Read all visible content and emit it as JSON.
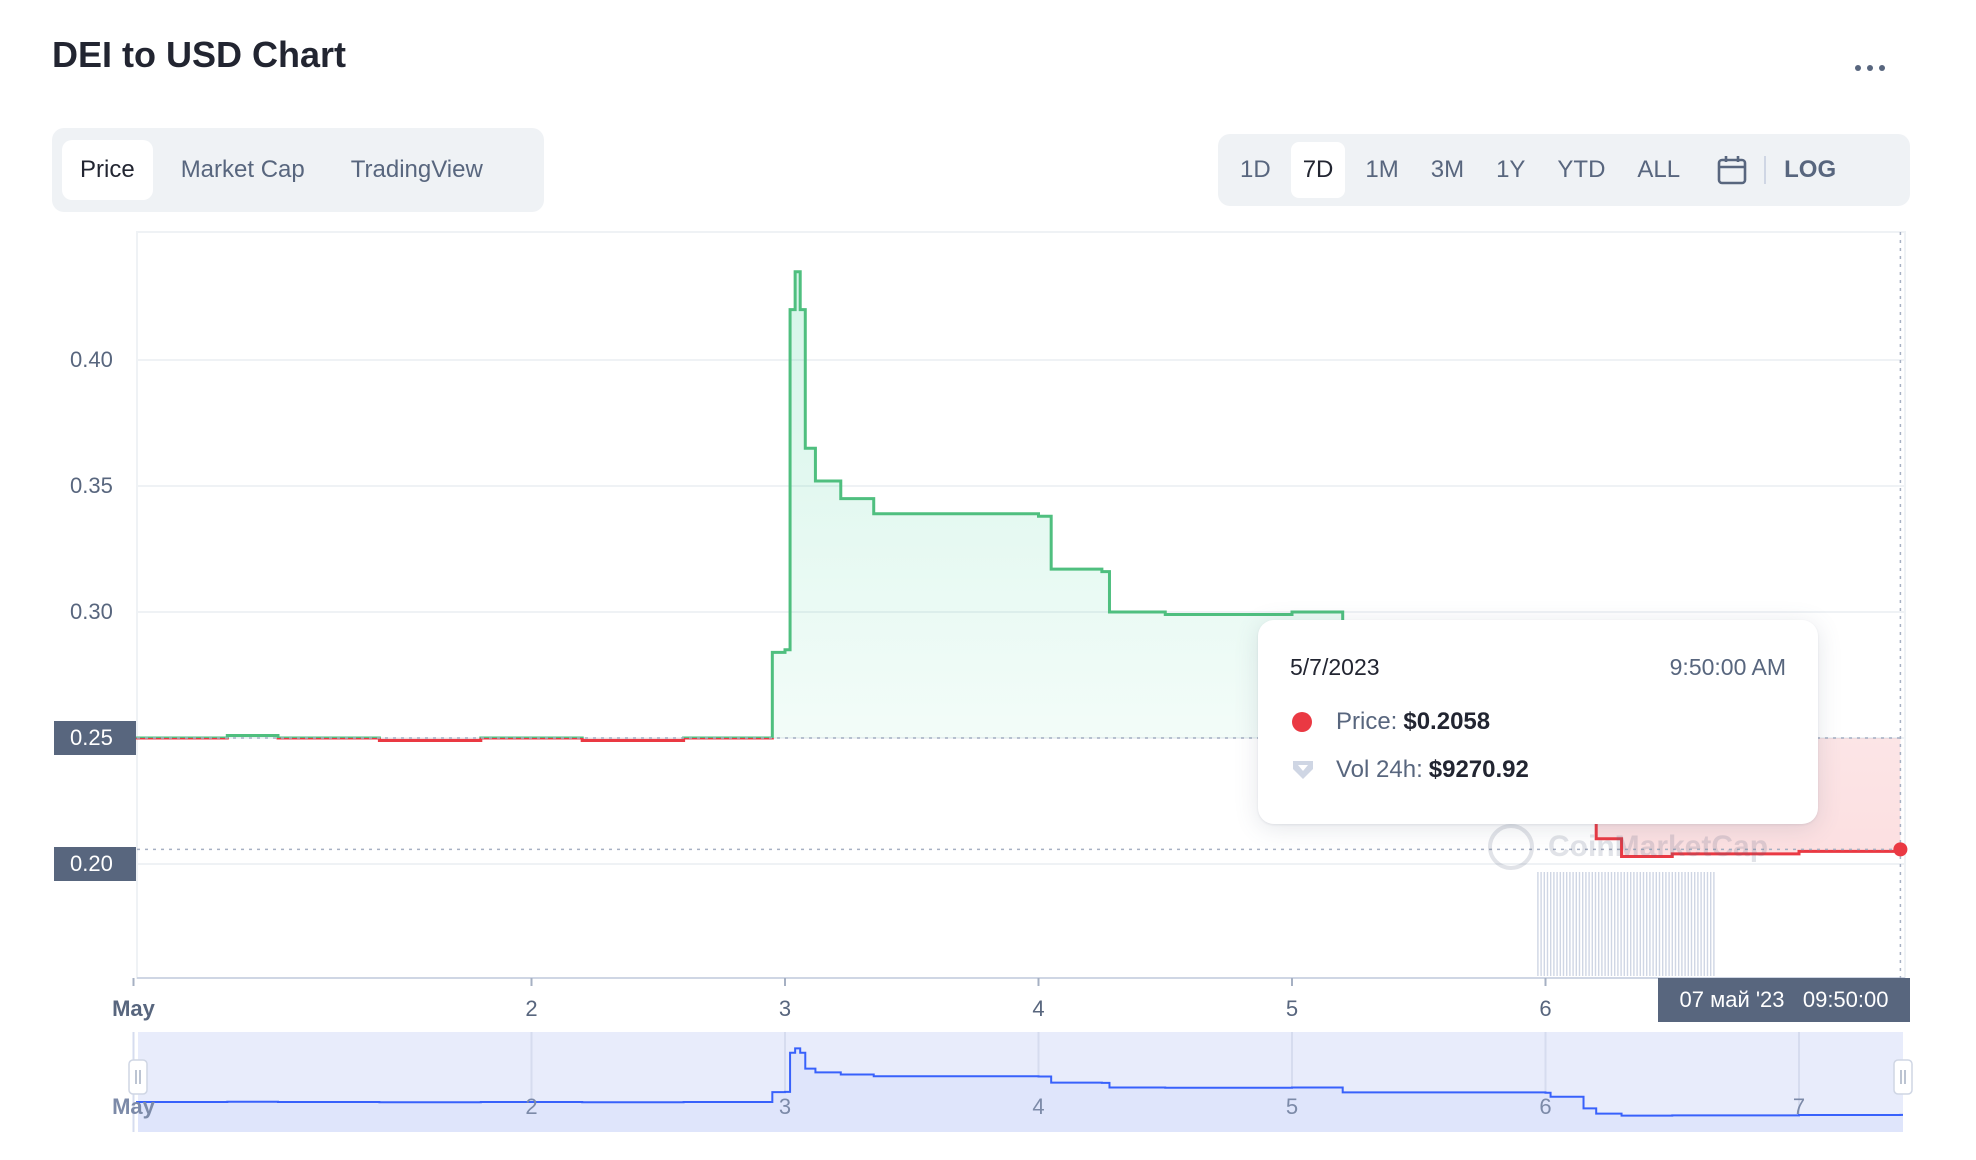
{
  "header": {
    "title": "DEI to USD Chart",
    "more_icon": "more-horizontal-icon"
  },
  "tabs": [
    {
      "label": "Price",
      "active": true
    },
    {
      "label": "Market Cap",
      "active": false
    },
    {
      "label": "TradingView",
      "active": false
    }
  ],
  "ranges": [
    {
      "label": "1D",
      "active": false
    },
    {
      "label": "7D",
      "active": true
    },
    {
      "label": "1M",
      "active": false
    },
    {
      "label": "3M",
      "active": false
    },
    {
      "label": "1Y",
      "active": false
    },
    {
      "label": "YTD",
      "active": false
    },
    {
      "label": "ALL",
      "active": false
    }
  ],
  "calendar_icon": "calendar-icon",
  "log_label": "LOG",
  "tooltip": {
    "date": "5/7/2023",
    "time": "9:50:00 AM",
    "price_label": "Price:",
    "price_value": "$0.2058",
    "vol_label": "Vol 24h:",
    "vol_value": "$9270.92"
  },
  "crosshair_label": "07 май '23   09:50:00",
  "watermark": "CoinMarketCap",
  "colors": {
    "up": "#16c784",
    "up_line": "#4fbf7f",
    "down": "#ea3943",
    "navigator": "#3861fb",
    "axis_text": "#58667e"
  },
  "chart_data": {
    "type": "area",
    "title": "DEI to USD Chart",
    "xlabel": "",
    "ylabel": "",
    "y_ticks": [
      "0.40",
      "0.35",
      "0.30",
      "0.25",
      "0.20"
    ],
    "ylim": [
      0.155,
      0.45
    ],
    "x_ticks": [
      "May",
      "2",
      "3",
      "4",
      "5",
      "6"
    ],
    "navigator_x_ticks": [
      "May",
      "2",
      "3",
      "4",
      "5",
      "6",
      "7"
    ],
    "x_unit": "day of May 2023 (local time)",
    "baseline": 0.25,
    "grid": true,
    "legend": "none",
    "series": [
      {
        "name": "Price",
        "x": [
          0.44,
          0.8,
          1.0,
          1.4,
          1.8,
          2.2,
          2.6,
          2.93,
          2.95,
          3.0,
          3.02,
          3.04,
          3.06,
          3.08,
          3.12,
          3.22,
          3.35,
          3.7,
          4.0,
          4.05,
          4.25,
          4.28,
          4.5,
          4.75,
          5.0,
          5.2,
          5.6,
          6.0,
          6.02,
          6.15,
          6.2,
          6.3,
          6.5,
          6.8,
          7.0,
          7.2,
          7.4
        ],
        "y": [
          0.25,
          0.251,
          0.25,
          0.249,
          0.25,
          0.249,
          0.25,
          0.25,
          0.284,
          0.285,
          0.42,
          0.435,
          0.42,
          0.365,
          0.352,
          0.345,
          0.339,
          0.339,
          0.338,
          0.317,
          0.316,
          0.3,
          0.299,
          0.299,
          0.3,
          0.283,
          0.283,
          0.282,
          0.268,
          0.228,
          0.21,
          0.203,
          0.204,
          0.204,
          0.205,
          0.205,
          0.2058
        ]
      }
    ],
    "volume_24h": [
      9270.92
    ],
    "selected_point": {
      "x": 7.4,
      "price": 0.2058,
      "vol_24h": 9270.92
    }
  }
}
